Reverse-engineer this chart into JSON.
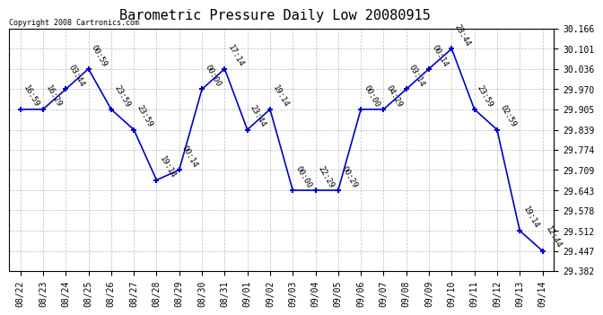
{
  "title": "Barometric Pressure Daily Low 20080915",
  "copyright": "Copyright 2008 Cartronics.com",
  "x_labels": [
    "08/22",
    "08/23",
    "08/24",
    "08/25",
    "08/26",
    "08/27",
    "08/28",
    "08/29",
    "08/30",
    "08/31",
    "09/01",
    "09/02",
    "09/03",
    "09/04",
    "09/05",
    "09/06",
    "09/07",
    "09/08",
    "09/09",
    "09/10",
    "09/11",
    "09/12",
    "09/13",
    "09/14"
  ],
  "y_values": [
    29.905,
    29.905,
    29.97,
    30.036,
    29.905,
    29.839,
    29.676,
    29.709,
    29.97,
    30.036,
    29.839,
    29.905,
    29.643,
    29.643,
    29.643,
    29.905,
    29.905,
    29.97,
    30.036,
    30.101,
    29.905,
    29.839,
    29.512,
    29.447
  ],
  "point_labels": [
    "16:59",
    "16:29",
    "03:44",
    "00:59",
    "23:59",
    "23:59",
    "19:14",
    "00:14",
    "00:00",
    "17:14",
    "23:44",
    "19:14",
    "00:00",
    "22:29",
    "00:29",
    "00:00",
    "04:29",
    "03:14",
    "00:14",
    "23:44",
    "23:59",
    "02:59",
    "19:14",
    "12:44"
  ],
  "y_min": 29.382,
  "y_max": 30.166,
  "y_ticks": [
    29.382,
    29.447,
    29.512,
    29.578,
    29.643,
    29.709,
    29.774,
    29.839,
    29.905,
    29.97,
    30.036,
    30.101,
    30.166
  ],
  "line_color": "#0000CC",
  "marker_color": "#0000CC",
  "bg_color": "#ffffff",
  "grid_color": "#bbbbbb",
  "title_fontsize": 11,
  "label_fontsize": 7,
  "annot_fontsize": 6.5
}
